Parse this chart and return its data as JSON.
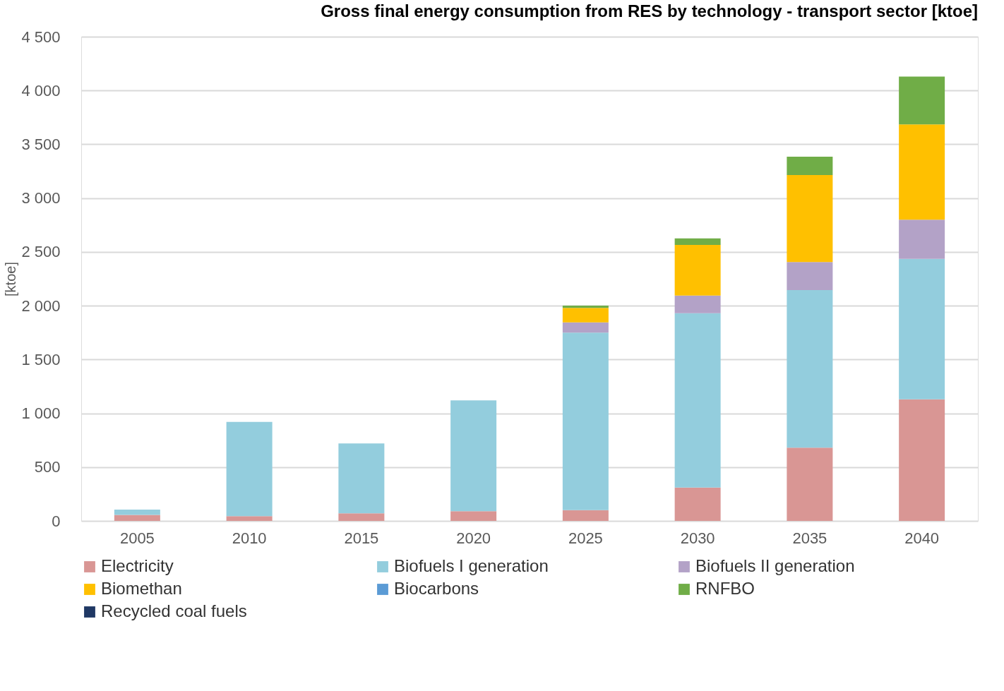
{
  "chart_data": {
    "type": "bar",
    "title": "Gross final energy consumption from RES by technology - transport sector [ktoe]",
    "ylabel": "[ktoe]",
    "categories": [
      "2005",
      "2010",
      "2015",
      "2020",
      "2025",
      "2030",
      "2035",
      "2040"
    ],
    "stacked": true,
    "series": [
      {
        "name": "Electricity",
        "color": "#d99694",
        "values": [
          55,
          45,
          70,
          90,
          100,
          310,
          680,
          1130
        ]
      },
      {
        "name": "Biofuels I generation",
        "color": "#93cddd",
        "values": [
          50,
          875,
          650,
          1030,
          1650,
          1620,
          1465,
          1305
        ]
      },
      {
        "name": "Biofuels II generation",
        "color": "#b3a2c7",
        "values": [
          0,
          0,
          0,
          0,
          95,
          165,
          260,
          365
        ]
      },
      {
        "name": "Biomethan",
        "color": "#ffc000",
        "values": [
          0,
          0,
          0,
          0,
          135,
          470,
          810,
          885
        ]
      },
      {
        "name": "Biocarbons",
        "color": "#5b9bd5",
        "values": [
          0,
          0,
          0,
          0,
          0,
          0,
          0,
          0
        ]
      },
      {
        "name": "RNFBO",
        "color": "#70ad47",
        "values": [
          0,
          0,
          0,
          0,
          20,
          60,
          170,
          445
        ]
      },
      {
        "name": "Recycled coal fuels",
        "color": "#1f3864",
        "values": [
          0,
          0,
          0,
          0,
          0,
          0,
          0,
          0
        ]
      }
    ],
    "ylim": [
      0,
      4500
    ],
    "yticks": [
      0,
      500,
      {
        "value": 1000,
        "label": "1 000"
      },
      {
        "value": 1500,
        "label": "1 500"
      },
      {
        "value": 2000,
        "label": "2 000"
      },
      {
        "value": 2500,
        "label": "2 500"
      },
      {
        "value": 3000,
        "label": "3 000"
      },
      {
        "value": 3500,
        "label": "3 500"
      },
      {
        "value": 4000,
        "label": "4 000"
      },
      {
        "value": 4500,
        "label": "4 500"
      }
    ],
    "grid": "y",
    "legend": "bottom"
  }
}
